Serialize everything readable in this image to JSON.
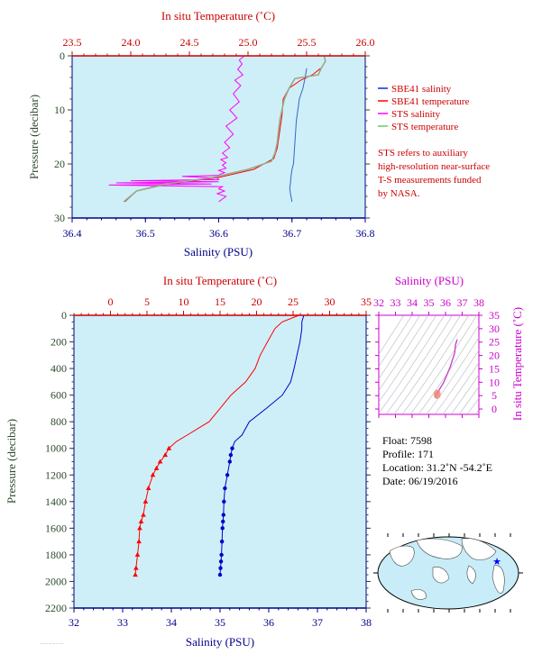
{
  "chart_data": [
    {
      "type": "line",
      "title": "",
      "x_top_label": "In situ Temperature (˚C)",
      "x_top_ticks": [
        23.5,
        24.0,
        24.5,
        25.0,
        25.5,
        26.0
      ],
      "x_top_tick_labels": [
        "23.5",
        "24.0",
        "24.5",
        "25.0",
        "25.5",
        "26.0"
      ],
      "x_top_range": [
        23.5,
        26.0
      ],
      "x_bottom_label": "Salinity (PSU)",
      "x_bottom_ticks": [
        36.4,
        36.5,
        36.6,
        36.7,
        36.8
      ],
      "x_bottom_tick_labels": [
        "36.4",
        "36.5",
        "36.6",
        "36.7",
        "36.8"
      ],
      "x_bottom_range": [
        36.4,
        36.8
      ],
      "ylabel": "Pressure (decibar)",
      "y_ticks": [
        0,
        10,
        20,
        30
      ],
      "y_tick_labels": [
        "0",
        "10",
        "20",
        "30"
      ],
      "y_range": [
        0,
        30
      ],
      "y_inverted": true,
      "legend_position": "right",
      "legend": [
        {
          "label": "SBE41 salinity",
          "color": "#0033cc"
        },
        {
          "label": "SBE41 temperature",
          "color": "#ff0000"
        },
        {
          "label": "STS salinity",
          "color": "#ff00ff"
        },
        {
          "label": "STS temperature",
          "color": "#66cc66"
        }
      ],
      "note_lines": [
        "STS refers to auxiliary",
        "high-resolution near-surface",
        "T-S measurements funded",
        "by NASA."
      ],
      "series": [
        {
          "name": "SBE41 salinity",
          "axis": "bottom",
          "color": "#3366cc",
          "x": [
            36.72,
            36.718,
            36.715,
            36.71,
            36.708,
            36.706,
            36.705,
            36.704,
            36.703,
            36.702,
            36.7,
            36.699,
            36.698,
            36.697,
            36.698,
            36.7
          ],
          "y": [
            2.3,
            4,
            6,
            8,
            10,
            12,
            14,
            16,
            18,
            20,
            21,
            22,
            23.5,
            24.5,
            25.5,
            27
          ]
        },
        {
          "name": "SBE41 temperature",
          "axis": "top",
          "color": "#ff0000",
          "x": [
            25.62,
            25.55,
            25.45,
            25.35,
            25.3,
            25.29,
            25.27,
            25.25,
            25.22,
            25.05,
            24.75,
            24.3,
            24.05,
            23.95
          ],
          "y": [
            2.3,
            3.5,
            4.5,
            6,
            8,
            11,
            14,
            17,
            19,
            21,
            22.5,
            23.8,
            25,
            27
          ]
        },
        {
          "name": "STS salinity",
          "axis": "bottom",
          "color": "#ff00ff",
          "x": [
            36.635,
            36.628,
            36.632,
            36.626,
            36.633,
            36.622,
            36.63,
            36.62,
            36.628,
            36.615,
            36.625,
            36.61,
            36.62,
            36.608,
            36.615,
            36.605,
            36.612,
            36.603,
            36.61,
            36.605,
            36.61,
            36.6,
            36.608,
            36.602,
            36.6,
            36.55,
            36.598,
            36.6,
            36.48,
            36.6,
            36.46,
            36.59,
            36.45,
            36.605,
            36.6,
            36.608,
            36.598,
            36.61,
            36.6
          ],
          "y": [
            0,
            0.8,
            1.5,
            2.5,
            3.5,
            4.5,
            5.5,
            7,
            8.5,
            10,
            11.5,
            13,
            14.5,
            16,
            17,
            18,
            18.8,
            19.2,
            19.8,
            20.2,
            20.8,
            21.2,
            21.6,
            21.9,
            22.1,
            22.3,
            22.6,
            22.9,
            23.1,
            23.3,
            23.5,
            23.7,
            23.9,
            24.2,
            24.6,
            25.0,
            25.5,
            26.0,
            27.0
          ]
        },
        {
          "name": "STS temperature",
          "axis": "top",
          "color": "#99aa88",
          "x": [
            25.65,
            25.66,
            25.62,
            25.6,
            25.4,
            25.35,
            25.31,
            25.29,
            25.27,
            25.26,
            25.25,
            25.23,
            25.2,
            25.0,
            24.7,
            24.3,
            24.05,
            23.94
          ],
          "y": [
            0,
            1,
            2.5,
            3.5,
            4.2,
            6,
            8,
            10,
            12,
            14,
            16,
            18,
            19.5,
            21,
            22.5,
            23.7,
            25,
            27
          ]
        }
      ]
    },
    {
      "type": "line",
      "title": "",
      "x_top_label": "In situ Temperature (˚C)",
      "x_top_ticks": [
        0,
        5,
        10,
        15,
        20,
        25,
        30,
        35
      ],
      "x_top_tick_labels": [
        "0",
        "5",
        "10",
        "15",
        "20",
        "25",
        "30",
        "35"
      ],
      "x_top_range": [
        -5,
        35
      ],
      "x_bottom_label": "Salinity (PSU)",
      "x_bottom_ticks": [
        32,
        33,
        34,
        35,
        36,
        37,
        38
      ],
      "x_bottom_tick_labels": [
        "32",
        "33",
        "34",
        "35",
        "36",
        "37",
        "38"
      ],
      "x_bottom_range": [
        32,
        38
      ],
      "ylabel": "Pressure (decibar)",
      "y_ticks": [
        0,
        200,
        400,
        600,
        800,
        1000,
        1200,
        1400,
        1600,
        1800,
        2000,
        2200
      ],
      "y_tick_labels": [
        "0",
        "200",
        "400",
        "600",
        "800",
        "1000",
        "1200",
        "1400",
        "1600",
        "1800",
        "2000",
        "2200"
      ],
      "y_range": [
        0,
        2200
      ],
      "y_inverted": true,
      "series": [
        {
          "name": "",
          "axis": "top",
          "color": "#ff0000",
          "x": [
            25.8,
            23.5,
            22.5,
            21.5,
            20.5,
            19.8,
            18.5,
            16.5,
            15,
            13.5,
            12,
            10.5,
            9,
            8,
            7.5,
            6.8,
            6.3,
            5.8,
            5.2,
            4.8,
            4.5,
            4.2,
            4.0,
            3.9,
            3.7,
            3.5,
            3.4
          ],
          "y": [
            0,
            50,
            100,
            200,
            300,
            400,
            500,
            600,
            700,
            800,
            850,
            900,
            950,
            1000,
            1050,
            1100,
            1150,
            1200,
            1300,
            1400,
            1500,
            1550,
            1600,
            1700,
            1800,
            1900,
            1950
          ],
          "markers_from_y": 1000
        },
        {
          "name": "",
          "axis": "bottom",
          "color": "#0000cc",
          "x": [
            36.72,
            36.68,
            36.68,
            36.64,
            36.58,
            36.52,
            36.45,
            36.28,
            35.95,
            35.6,
            35.45,
            35.3,
            35.25,
            35.22,
            35.2,
            35.15,
            35.1,
            35.08,
            35.07,
            35.06,
            35.05,
            35.04,
            35.03,
            35.02,
            35.01,
            35.0
          ],
          "y": [
            0,
            50,
            100,
            200,
            300,
            400,
            500,
            600,
            700,
            800,
            900,
            950,
            1000,
            1050,
            1100,
            1200,
            1300,
            1400,
            1500,
            1550,
            1600,
            1700,
            1800,
            1850,
            1900,
            1950
          ],
          "markers_from_y": 1000
        }
      ]
    },
    {
      "type": "scatter",
      "title": "",
      "x_top_label": "Salinity (PSU)",
      "x_top_ticks": [
        32,
        33,
        34,
        35,
        36,
        37,
        38
      ],
      "x_top_tick_labels": [
        "32",
        "33",
        "34",
        "35",
        "36",
        "37",
        "38"
      ],
      "x_range": [
        32,
        38
      ],
      "y_right_label": "In situ Temperature (˚C)",
      "y_ticks": [
        0,
        5,
        10,
        15,
        20,
        25,
        30,
        35
      ],
      "y_tick_labels": [
        "0",
        "5",
        "10",
        "15",
        "20",
        "25",
        "30",
        "35"
      ],
      "y_range": [
        -2,
        35
      ],
      "series": [
        {
          "name": "",
          "color": "#cc44cc",
          "x": [
            35.4,
            35.5,
            35.7,
            35.9,
            36.1,
            36.3,
            36.45,
            36.55,
            36.6,
            36.7
          ],
          "y": [
            4,
            6,
            8,
            10,
            13,
            16,
            19,
            21,
            24,
            26
          ]
        }
      ]
    }
  ],
  "info": {
    "float": "Float: 7598",
    "profile": "Profile: 171",
    "location": "Location: 31.2˚N -54.2˚E",
    "date": "Date: 06/19/2016"
  },
  "map": {
    "marker_icon": "star-icon",
    "marker_color": "#0000ff",
    "ocean_color": "#c8ecf8",
    "land_color": "#ffffff"
  },
  "colors": {
    "plot_bg": "#cfeff8",
    "top_axis": "#cc0000",
    "bottom_axis": "#000088",
    "y_axis": "#2d4a2d",
    "ts_axis": "#cc00cc"
  }
}
